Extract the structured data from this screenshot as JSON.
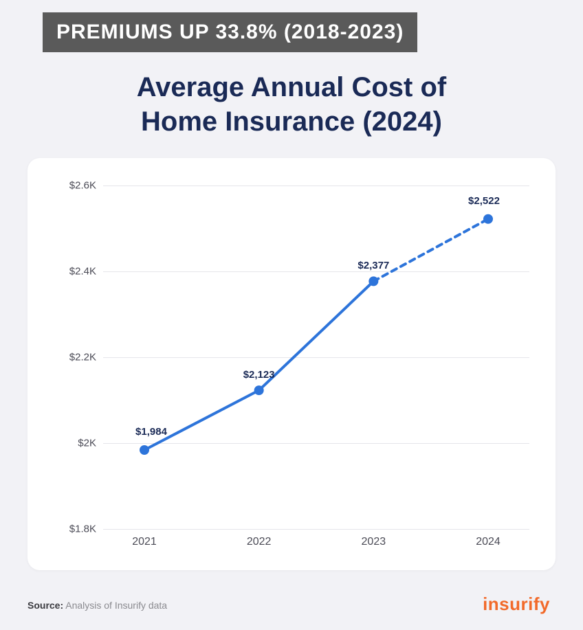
{
  "banner": {
    "text": "PREMIUMS UP 33.8% (2018-2023)"
  },
  "title": {
    "line1": "Average Annual Cost of",
    "line2": "Home Insurance (2024)"
  },
  "chart": {
    "type": "line",
    "background_color": "#ffffff",
    "grid_color": "#e5e5ea",
    "line_color": "#2d74da",
    "marker_color": "#2d74da",
    "line_width": 4,
    "marker_radius": 7,
    "ylim": [
      1800,
      2600
    ],
    "yticks": [
      1800,
      2000,
      2200,
      2400,
      2600
    ],
    "ytick_labels": [
      "$1.8K",
      "$2K",
      "$2.2K",
      "$2.4K",
      "$2.6K"
    ],
    "x_categories": [
      "2021",
      "2022",
      "2023",
      "2024"
    ],
    "series": [
      {
        "x": "2021",
        "y": 1984,
        "label": "$1,984",
        "dashed_to_next": false
      },
      {
        "x": "2022",
        "y": 2123,
        "label": "$2,123",
        "dashed_to_next": false
      },
      {
        "x": "2023",
        "y": 2377,
        "label": "$2,377",
        "dashed_to_next": true
      },
      {
        "x": "2024",
        "y": 2522,
        "label": "$2,522",
        "dashed_to_next": false
      }
    ],
    "label_fontsize": 15,
    "label_color": "#1a2a56"
  },
  "source": {
    "prefix": "Source:",
    "text": "Analysis of Insurify data"
  },
  "brand": {
    "name": "insurify",
    "color": "#f26a2a"
  }
}
